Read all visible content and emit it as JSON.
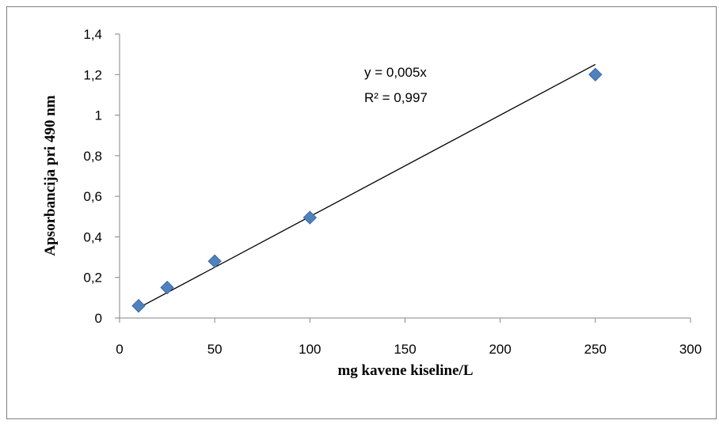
{
  "chart_data": {
    "type": "scatter",
    "title": "",
    "xlabel": "mg kavene kiseline/L",
    "ylabel": "Apsorbancija pri 490 nm",
    "xlim": [
      0,
      300
    ],
    "ylim": [
      0,
      1.4
    ],
    "x_ticks": [
      "0",
      "50",
      "100",
      "150",
      "200",
      "250",
      "300"
    ],
    "y_ticks": [
      "0",
      "0,2",
      "0,4",
      "0,6",
      "0,8",
      "1",
      "1,2",
      "1,4"
    ],
    "grid": false,
    "legend": "none",
    "marker_color": "#4f81bd",
    "series": [
      {
        "x": [
          10,
          25,
          50,
          100,
          250
        ],
        "y": [
          0.06,
          0.15,
          0.28,
          0.495,
          1.2
        ]
      }
    ],
    "trendline": {
      "type": "linear",
      "slope": 0.005,
      "intercept": 0,
      "x_range": [
        10,
        250
      ],
      "equation": "y = 0,005x",
      "r_squared": "R² = 0,997"
    }
  }
}
